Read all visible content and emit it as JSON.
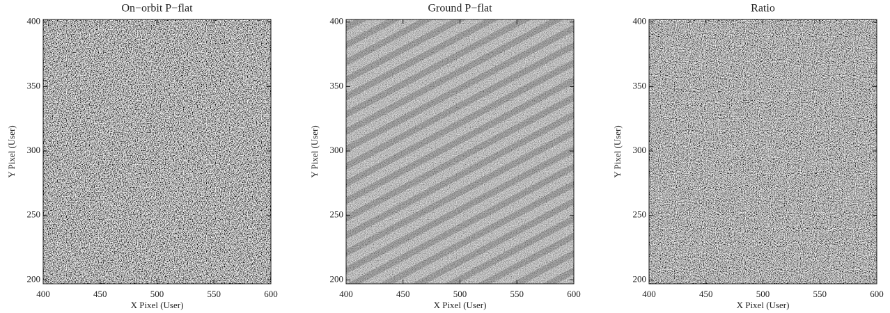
{
  "chart_data": [
    {
      "type": "image",
      "title": "On−orbit P−flat",
      "xlabel": "X Pixel (User)",
      "ylabel": "Y Pixel (User)",
      "xlim": [
        400,
        600
      ],
      "ylim": [
        197,
        402
      ],
      "xticks": [
        400,
        450,
        500,
        550,
        600
      ],
      "yticks": [
        200,
        250,
        300,
        350,
        400
      ]
    },
    {
      "type": "image",
      "title": "Ground P−flat",
      "xlabel": "X Pixel (User)",
      "ylabel": "Y Pixel (User)",
      "xlim": [
        400,
        600
      ],
      "ylim": [
        197,
        402
      ],
      "xticks": [
        400,
        450,
        500,
        550,
        600
      ],
      "yticks": [
        200,
        250,
        300,
        350,
        400
      ]
    },
    {
      "type": "image",
      "title": "Ratio",
      "xlabel": "X Pixel (User)",
      "ylabel": "Y Pixel (User)",
      "xlim": [
        400,
        600
      ],
      "ylim": [
        197,
        402
      ],
      "xticks": [
        400,
        450,
        500,
        550,
        600
      ],
      "yticks": [
        200,
        250,
        300,
        350,
        400
      ]
    }
  ]
}
